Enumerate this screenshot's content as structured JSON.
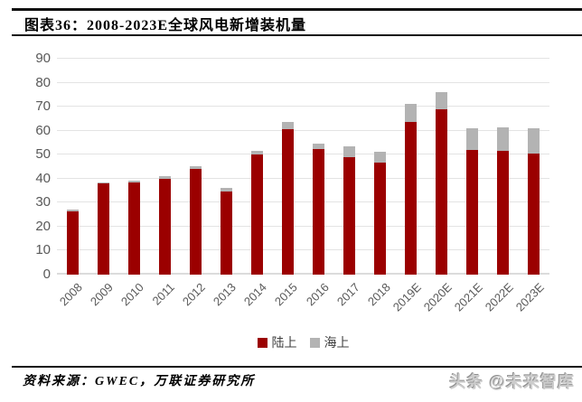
{
  "header": {
    "title": "图表36：2008-2023E全球风电新增装机量"
  },
  "chart_data": {
    "type": "bar",
    "stacked": true,
    "title": "2008-2023E全球风电新增装机量",
    "categories": [
      "2008",
      "2009",
      "2010",
      "2011",
      "2012",
      "2013",
      "2014",
      "2015",
      "2016",
      "2017",
      "2018",
      "2019E",
      "2020E",
      "2021E",
      "2022E",
      "2023E"
    ],
    "series": [
      {
        "name": "陆上",
        "color": "#9B0000",
        "values": [
          26.5,
          38.0,
          38.3,
          40.0,
          44.0,
          34.5,
          50.0,
          60.5,
          52.5,
          49.0,
          46.8,
          63.5,
          69.0,
          52.0,
          51.5,
          50.5
        ]
      },
      {
        "name": "海上",
        "color": "#B3B3B3",
        "values": [
          0.5,
          0.6,
          0.9,
          1.0,
          1.3,
          1.6,
          1.6,
          3.3,
          2.2,
          4.6,
          4.5,
          7.5,
          7.0,
          9.0,
          10.0,
          10.5
        ]
      }
    ],
    "ylim": [
      0,
      90
    ],
    "yticks": [
      0,
      10,
      20,
      30,
      40,
      50,
      60,
      70,
      80,
      90
    ],
    "grid": true,
    "legend_position": "bottom"
  },
  "colors": {
    "onshore": "#9B0000",
    "offshore": "#B3B3B3",
    "gridline": "#e3e3e3",
    "axis_text": "#595959",
    "rule": "#111111"
  },
  "footer": {
    "source": "资料来源：GWEC，万联证券研究所",
    "watermark": "头条 @未来智库"
  }
}
